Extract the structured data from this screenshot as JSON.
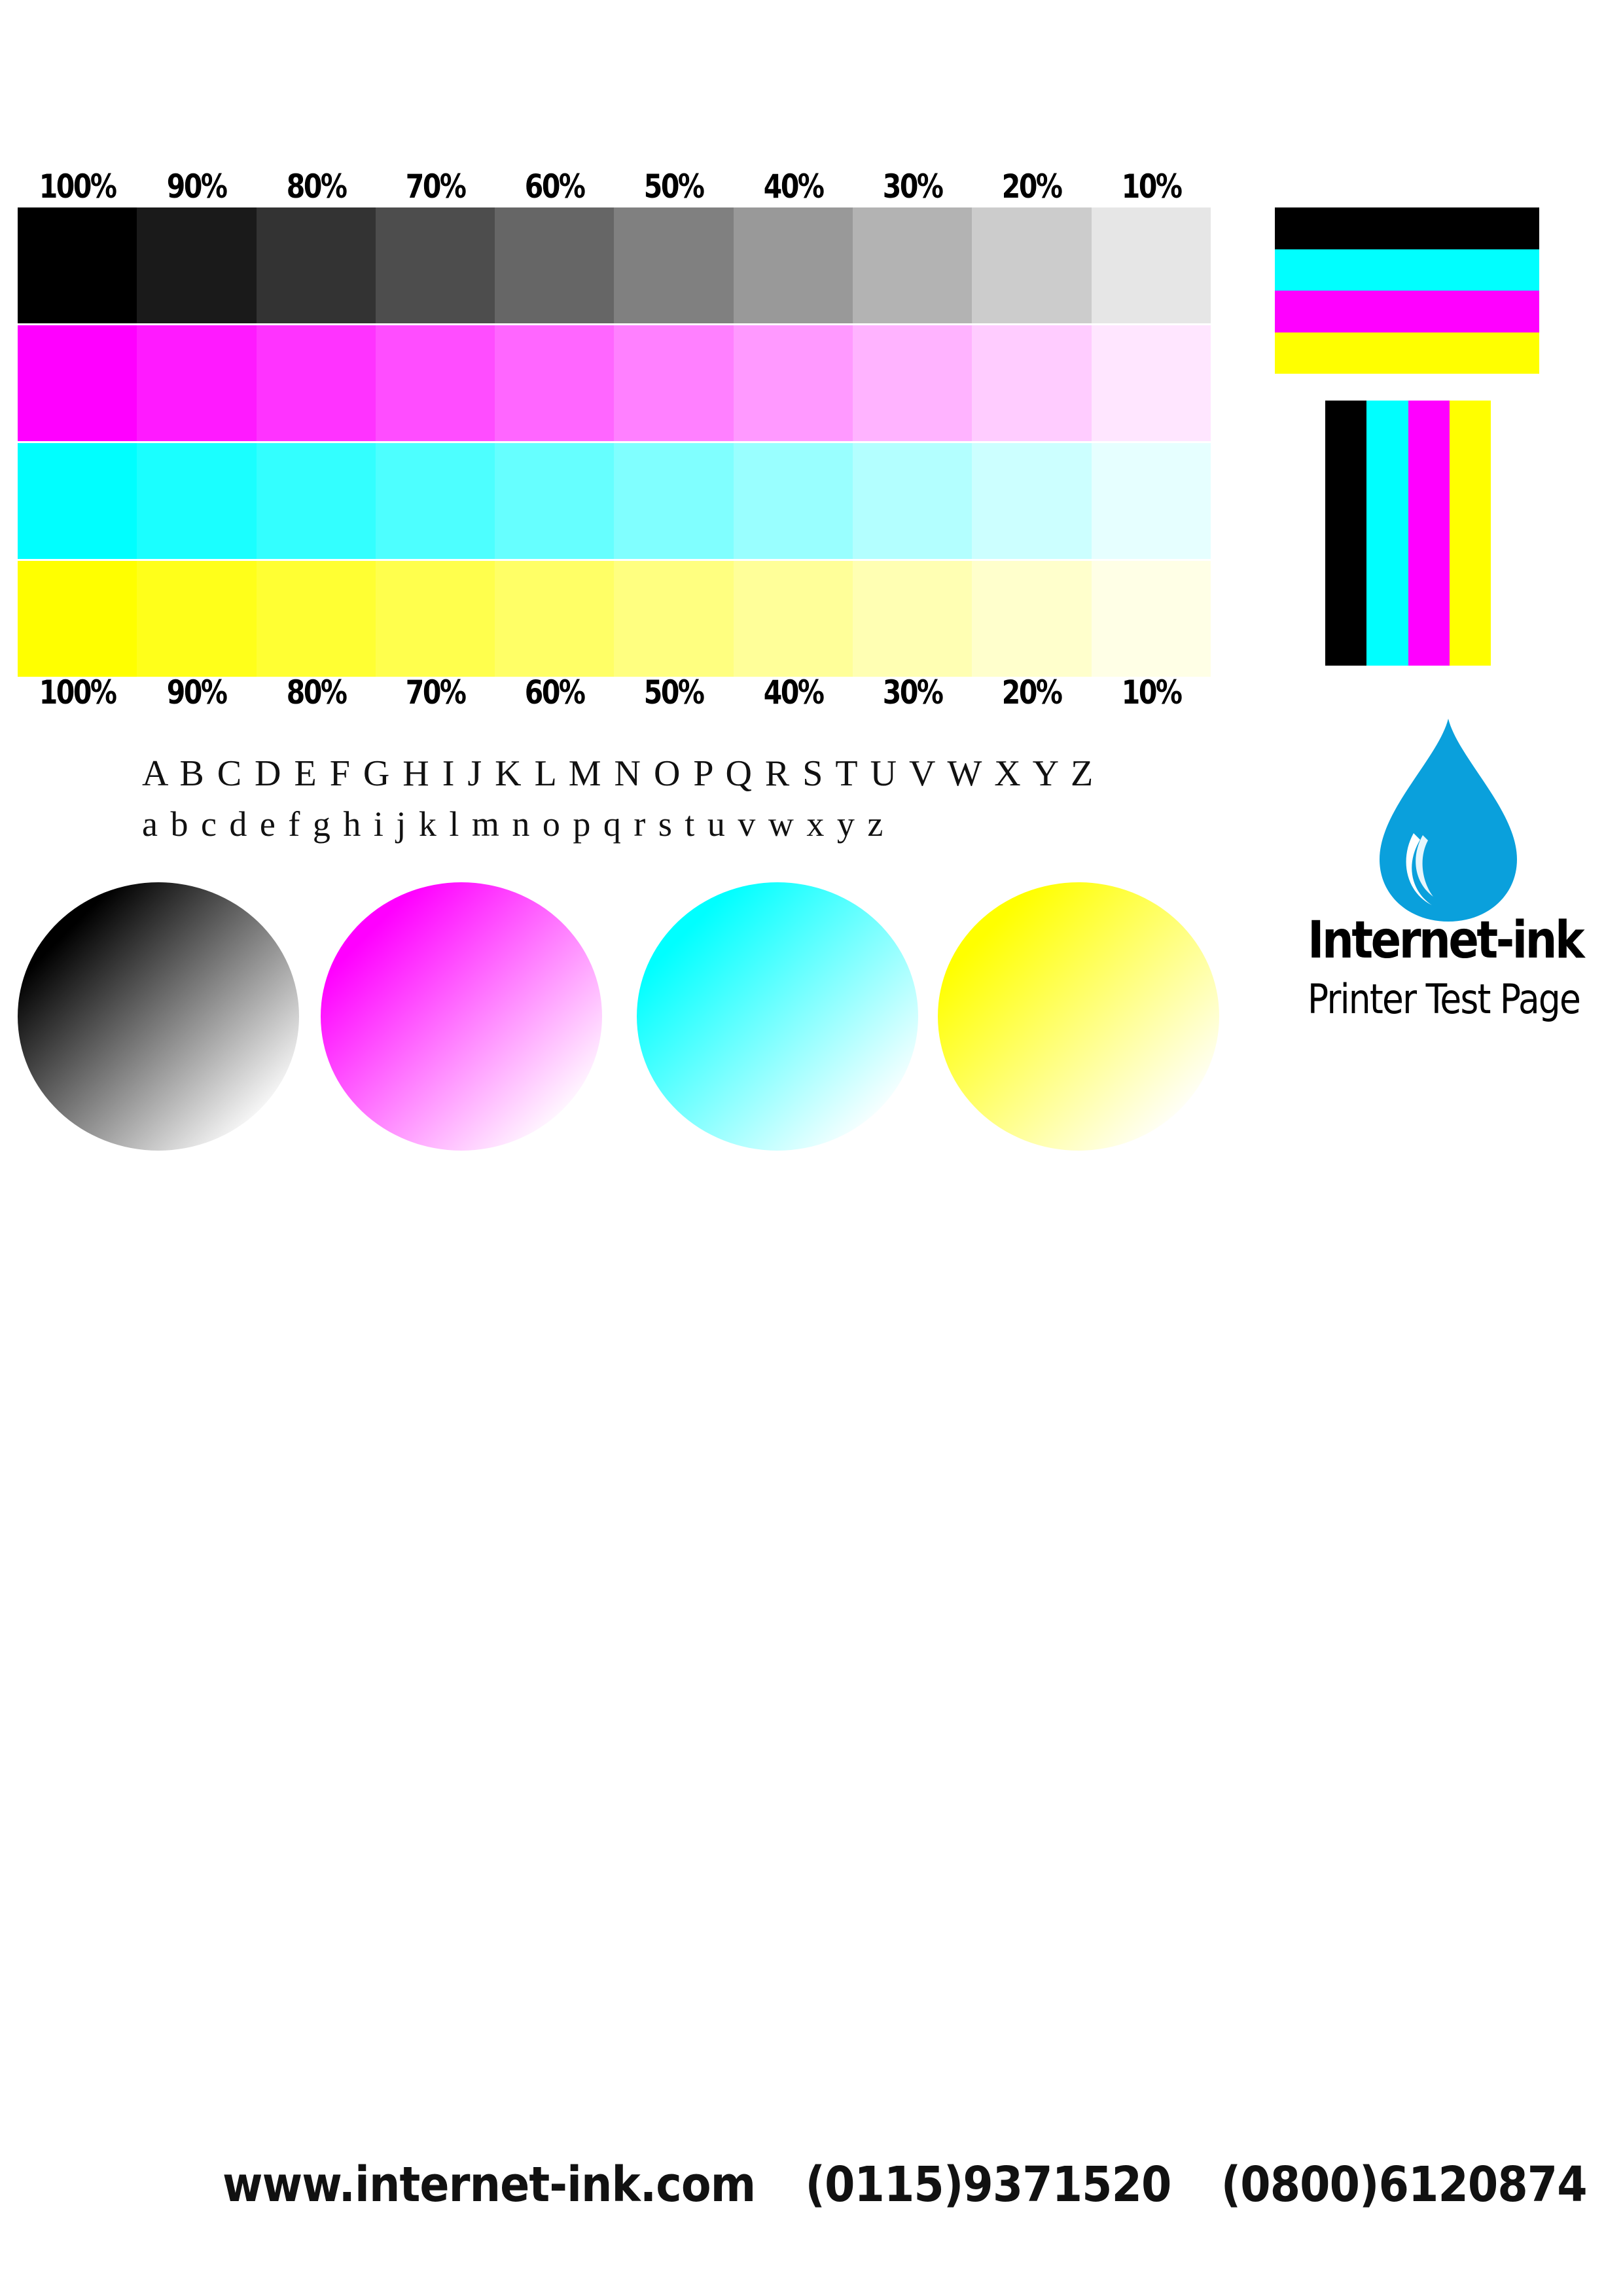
{
  "percent_labels": [
    "100%",
    "90%",
    "80%",
    "70%",
    "60%",
    "50%",
    "40%",
    "30%",
    "20%",
    "10%"
  ],
  "tint_ramps": [
    {
      "name": "black",
      "colors": [
        "#000000",
        "#1a1a1a",
        "#333333",
        "#4d4d4d",
        "#666666",
        "#808080",
        "#999999",
        "#b3b3b3",
        "#cccccc",
        "#e6e6e6"
      ]
    },
    {
      "name": "magenta",
      "colors": [
        "#ff00ff",
        "#ff1aff",
        "#ff33ff",
        "#ff4dff",
        "#ff66ff",
        "#ff80ff",
        "#ff99ff",
        "#ffb3ff",
        "#ffccff",
        "#ffe6ff"
      ]
    },
    {
      "name": "cyan",
      "colors": [
        "#00ffff",
        "#1affff",
        "#33ffff",
        "#4dffff",
        "#66ffff",
        "#80ffff",
        "#99ffff",
        "#b3ffff",
        "#ccffff",
        "#e6ffff"
      ]
    },
    {
      "name": "yellow",
      "colors": [
        "#ffff00",
        "#ffff1a",
        "#ffff33",
        "#ffff4d",
        "#ffff66",
        "#ffff80",
        "#ffff99",
        "#ffffb3",
        "#ffffcc",
        "#ffffe6"
      ]
    }
  ],
  "alphabet": {
    "upper": "A B C D E F G H I J K L M N O P Q R S T U V W X Y Z",
    "lower": "a b c d e f g h i j k l m n o p q r s t u v w x y z"
  },
  "circles": [
    {
      "name": "black",
      "color": "#000000"
    },
    {
      "name": "magenta",
      "color": "#ff00ff"
    },
    {
      "name": "cyan",
      "color": "#00ffff"
    },
    {
      "name": "yellow",
      "color": "#ffff00"
    }
  ],
  "cmyk_bars": [
    "#000000",
    "#00ffff",
    "#ff00ff",
    "#ffff00"
  ],
  "brand": {
    "title": "Internet-ink",
    "subtitle": "Printer Test Page",
    "drop_color": "#0aa0dc",
    "drop_icon": "ink-drop-icon"
  },
  "footer": {
    "website": "www.internet-ink.com",
    "phone1": "(0115)9371520",
    "phone2": "(0800)6120874"
  }
}
